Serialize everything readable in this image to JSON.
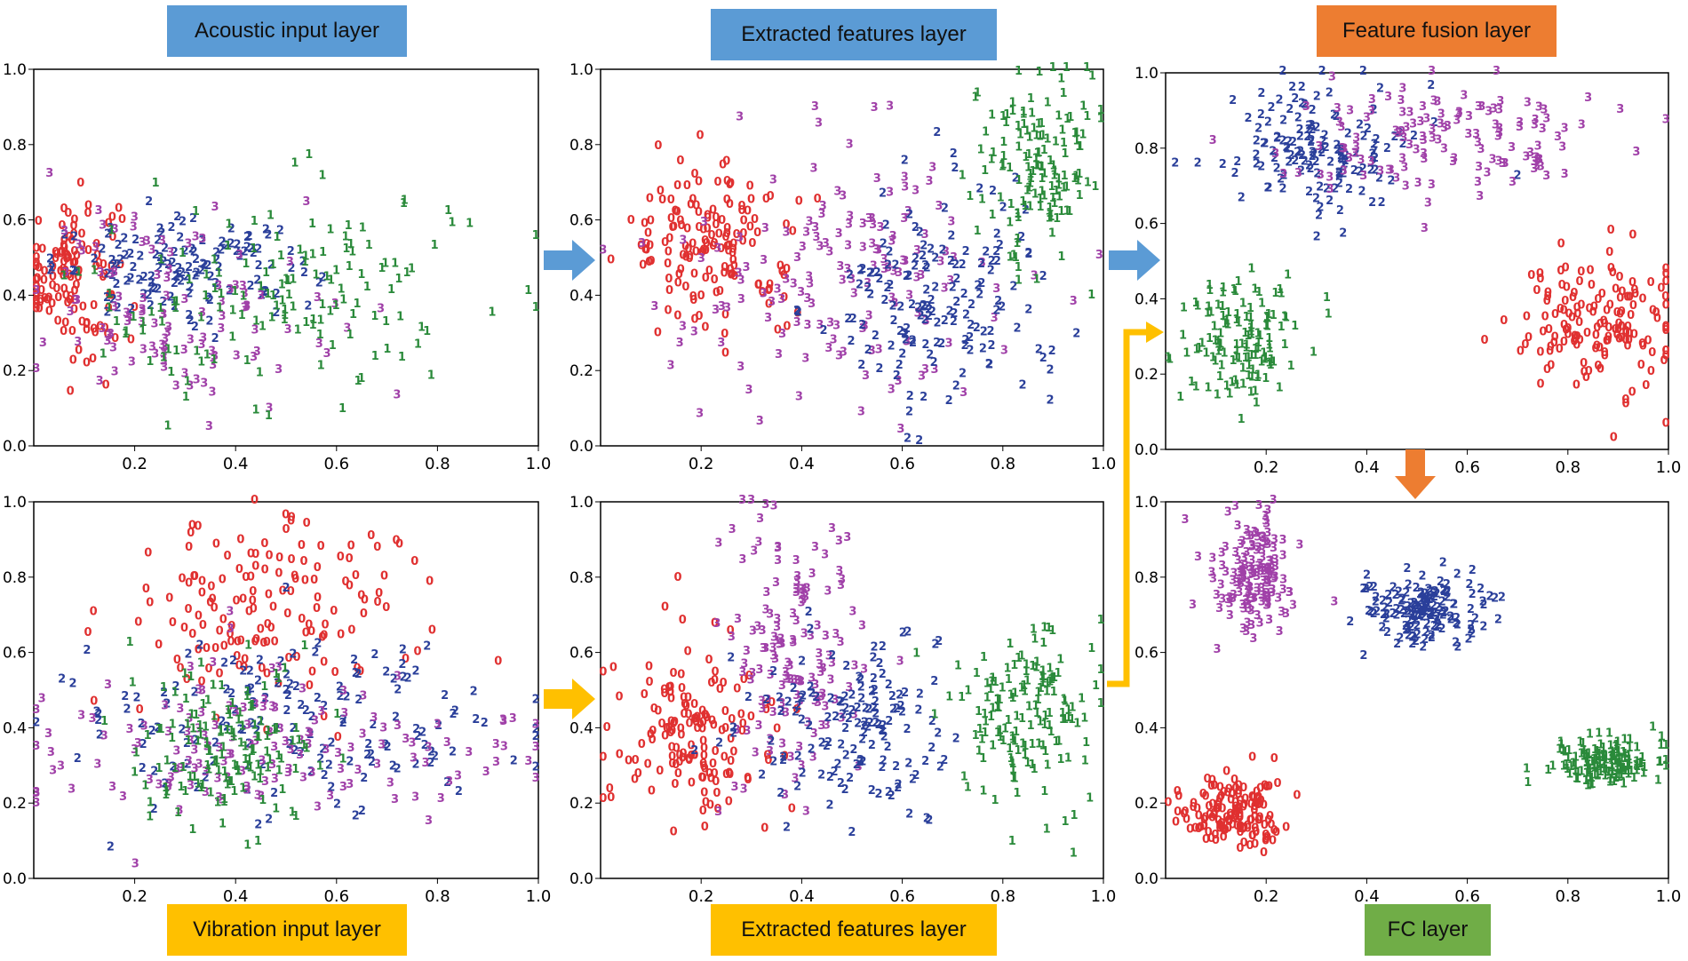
{
  "colors": {
    "class0": "#e03030",
    "class1": "#2a8a3a",
    "class2": "#2a3f9a",
    "class3": "#a040a8",
    "blue_label": "#5b9bd5",
    "orange_label": "#ed7d31",
    "yellow_label": "#ffc000",
    "green_label": "#70ad47"
  },
  "labels": {
    "acoustic": "Acoustic input layer",
    "extracted_top": "Extracted  features  layer",
    "fusion": "Feature fusion layer",
    "vibration": "Vibration input layer",
    "extracted_bottom": "Extracted  features  layer",
    "fc": "FC layer"
  },
  "chart_data": [
    {
      "id": "acoustic",
      "type": "scatter",
      "title": "Acoustic input layer",
      "xlim": [
        0,
        1.0
      ],
      "ylim": [
        0,
        1.0
      ],
      "xticks": [
        0.2,
        0.4,
        0.6,
        0.8,
        1.0
      ],
      "yticks": [
        0.0,
        0.2,
        0.4,
        0.6,
        0.8,
        1.0
      ],
      "clusters": [
        {
          "label": "0",
          "color": "#e03030",
          "cx": 0.07,
          "cy": 0.45,
          "sx": 0.05,
          "sy": 0.11,
          "n": 120
        },
        {
          "label": "2",
          "color": "#2a3f9a",
          "cx": 0.3,
          "cy": 0.46,
          "sx": 0.13,
          "sy": 0.06,
          "n": 130
        },
        {
          "label": "3",
          "color": "#a040a8",
          "cx": 0.3,
          "cy": 0.36,
          "sx": 0.14,
          "sy": 0.13,
          "n": 110
        },
        {
          "label": "1",
          "color": "#2a8a3a",
          "cx": 0.48,
          "cy": 0.38,
          "sx": 0.2,
          "sy": 0.15,
          "n": 150
        }
      ]
    },
    {
      "id": "extracted_top",
      "type": "scatter",
      "title": "Extracted  features  layer",
      "xlim": [
        0,
        1.0
      ],
      "ylim": [
        0,
        1.0
      ],
      "xticks": [
        0.2,
        0.4,
        0.6,
        0.8,
        1.0
      ],
      "yticks": [
        0.0,
        0.2,
        0.4,
        0.6,
        0.8,
        1.0
      ],
      "clusters": [
        {
          "label": "0",
          "color": "#e03030",
          "cx": 0.22,
          "cy": 0.53,
          "sx": 0.08,
          "sy": 0.11,
          "n": 150
        },
        {
          "label": "3",
          "color": "#a040a8",
          "cx": 0.5,
          "cy": 0.45,
          "sx": 0.18,
          "sy": 0.18,
          "n": 150
        },
        {
          "label": "2",
          "color": "#2a3f9a",
          "cx": 0.67,
          "cy": 0.38,
          "sx": 0.1,
          "sy": 0.15,
          "n": 150
        },
        {
          "label": "1",
          "color": "#2a8a3a",
          "cx": 0.87,
          "cy": 0.74,
          "sx": 0.06,
          "sy": 0.12,
          "n": 140
        }
      ]
    },
    {
      "id": "fusion",
      "type": "scatter",
      "title": "Feature fusion layer",
      "xlim": [
        0,
        1.0
      ],
      "ylim": [
        0,
        1.0
      ],
      "xticks": [
        0.2,
        0.4,
        0.6,
        0.8,
        1.0
      ],
      "yticks": [
        0.0,
        0.2,
        0.4,
        0.6,
        0.8,
        1.0
      ],
      "clusters": [
        {
          "label": "2",
          "color": "#2a3f9a",
          "cx": 0.3,
          "cy": 0.78,
          "sx": 0.09,
          "sy": 0.1,
          "n": 140
        },
        {
          "label": "3",
          "color": "#a040a8",
          "cx": 0.55,
          "cy": 0.82,
          "sx": 0.15,
          "sy": 0.08,
          "n": 130
        },
        {
          "label": "0",
          "color": "#e03030",
          "cx": 0.86,
          "cy": 0.34,
          "sx": 0.08,
          "sy": 0.08,
          "n": 150
        },
        {
          "label": "1",
          "color": "#2a8a3a",
          "cx": 0.16,
          "cy": 0.28,
          "sx": 0.06,
          "sy": 0.09,
          "n": 130
        }
      ]
    },
    {
      "id": "vibration",
      "type": "scatter",
      "title": "Vibration input layer",
      "xlim": [
        0,
        1.0
      ],
      "ylim": [
        0,
        1.0
      ],
      "xticks": [
        0.2,
        0.4,
        0.6,
        0.8,
        1.0
      ],
      "yticks": [
        0.0,
        0.2,
        0.4,
        0.6,
        0.8,
        1.0
      ],
      "clusters": [
        {
          "label": "0",
          "color": "#e03030",
          "cx": 0.45,
          "cy": 0.7,
          "sx": 0.14,
          "sy": 0.13,
          "n": 150
        },
        {
          "label": "2",
          "color": "#2a3f9a",
          "cx": 0.5,
          "cy": 0.4,
          "sx": 0.25,
          "sy": 0.12,
          "n": 150
        },
        {
          "label": "3",
          "color": "#a040a8",
          "cx": 0.48,
          "cy": 0.32,
          "sx": 0.25,
          "sy": 0.1,
          "n": 150
        },
        {
          "label": "1",
          "color": "#2a8a3a",
          "cx": 0.38,
          "cy": 0.34,
          "sx": 0.1,
          "sy": 0.12,
          "n": 140
        }
      ]
    },
    {
      "id": "extracted_bottom",
      "type": "scatter",
      "title": "Extracted  features  layer",
      "xlim": [
        0,
        1.0
      ],
      "ylim": [
        0,
        1.0
      ],
      "xticks": [
        0.2,
        0.4,
        0.6,
        0.8,
        1.0
      ],
      "yticks": [
        0.0,
        0.2,
        0.4,
        0.6,
        0.8,
        1.0
      ],
      "clusters": [
        {
          "label": "0",
          "color": "#e03030",
          "cx": 0.18,
          "cy": 0.38,
          "sx": 0.08,
          "sy": 0.12,
          "n": 150
        },
        {
          "label": "3",
          "color": "#a040a8",
          "cx": 0.38,
          "cy": 0.6,
          "sx": 0.07,
          "sy": 0.2,
          "n": 140
        },
        {
          "label": "2",
          "color": "#2a3f9a",
          "cx": 0.52,
          "cy": 0.4,
          "sx": 0.1,
          "sy": 0.13,
          "n": 140
        },
        {
          "label": "1",
          "color": "#2a8a3a",
          "cx": 0.85,
          "cy": 0.42,
          "sx": 0.07,
          "sy": 0.12,
          "n": 150
        }
      ]
    },
    {
      "id": "fc",
      "type": "scatter",
      "title": "FC layer",
      "xlim": [
        0,
        1.0
      ],
      "ylim": [
        0,
        1.0
      ],
      "xticks": [
        0.2,
        0.4,
        0.6,
        0.8,
        1.0
      ],
      "yticks": [
        0.0,
        0.2,
        0.4,
        0.6,
        0.8,
        1.0
      ],
      "clusters": [
        {
          "label": "3",
          "color": "#a040a8",
          "cx": 0.18,
          "cy": 0.79,
          "sx": 0.04,
          "sy": 0.09,
          "n": 150
        },
        {
          "label": "2",
          "color": "#2a3f9a",
          "cx": 0.52,
          "cy": 0.7,
          "sx": 0.06,
          "sy": 0.05,
          "n": 150
        },
        {
          "label": "1",
          "color": "#2a8a3a",
          "cx": 0.88,
          "cy": 0.3,
          "sx": 0.06,
          "sy": 0.03,
          "n": 150
        },
        {
          "label": "0",
          "color": "#e03030",
          "cx": 0.13,
          "cy": 0.16,
          "sx": 0.05,
          "sy": 0.05,
          "n": 150
        }
      ]
    }
  ]
}
